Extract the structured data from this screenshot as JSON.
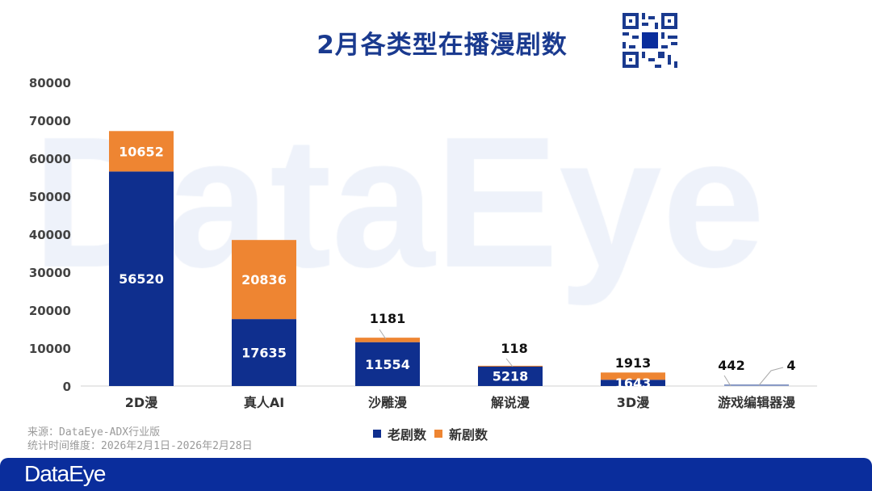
{
  "watermark": "DataEye",
  "colors": {
    "old": "#0f2f8e",
    "new": "#ee8532",
    "tiny": "#8a9bc6"
  },
  "legend": [
    {
      "label": "老剧数",
      "color": "#0f2f8e"
    },
    {
      "label": "新剧数",
      "color": "#ee8532"
    }
  ],
  "source": {
    "line1": "来源：DataEye-ADX行业版",
    "line2": "统计时间维度：2026年2月1日-2026年2月28日"
  },
  "footer": {
    "logo": "DataEye"
  },
  "chart_data": {
    "type": "bar",
    "stacked": true,
    "title": "2月各类型在播漫剧数",
    "categories": [
      "2D漫",
      "真人AI",
      "沙雕漫",
      "解说漫",
      "3D漫",
      "游戏编辑器漫"
    ],
    "series": [
      {
        "name": "老剧数",
        "values": [
          56520,
          17635,
          11554,
          5218,
          1643,
          442
        ]
      },
      {
        "name": "新剧数",
        "values": [
          10652,
          20836,
          1181,
          118,
          1913,
          4
        ]
      }
    ],
    "ylim": [
      0,
      80000
    ],
    "yticks": [
      0,
      10000,
      20000,
      30000,
      40000,
      50000,
      60000,
      70000,
      80000
    ],
    "grid": false,
    "legend_position": "bottom"
  }
}
